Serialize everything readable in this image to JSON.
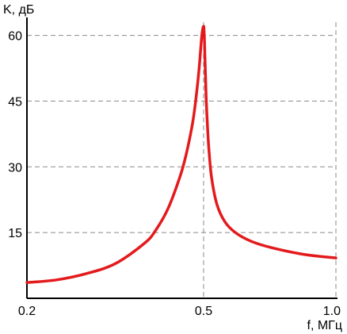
{
  "chart_data": {
    "type": "line",
    "title": "",
    "xlabel": "f, МГц",
    "ylabel": "K, дБ",
    "xlim": [
      0.2,
      1.0
    ],
    "ylim": [
      0,
      63
    ],
    "x_scale": "piecewise",
    "x_ticks": [
      {
        "value": 0.2,
        "label": "0.2"
      },
      {
        "value": 0.5,
        "label": "0.5"
      },
      {
        "value": 1.0,
        "label": "1.0"
      }
    ],
    "y_ticks": [
      {
        "value": 15,
        "label": "15"
      },
      {
        "value": 30,
        "label": "30"
      },
      {
        "value": 45,
        "label": "45"
      },
      {
        "value": 60,
        "label": "60"
      }
    ],
    "grid": true,
    "grid_style": "dashed",
    "legend": "none",
    "series": [
      {
        "color": "#e31a1c",
        "x": [
          0.2,
          0.25,
          0.3,
          0.35,
          0.4,
          0.42,
          0.44,
          0.46,
          0.47,
          0.48,
          0.485,
          0.49,
          0.493,
          0.495,
          0.497,
          0.499,
          0.5,
          0.501,
          0.503,
          0.505,
          0.507,
          0.51,
          0.515,
          0.52,
          0.53,
          0.55,
          0.58,
          0.62,
          0.68,
          0.76,
          0.88,
          1.0
        ],
        "y": [
          3.6,
          4.2,
          5.6,
          7.9,
          12.6,
          15.8,
          20.6,
          27.8,
          32.6,
          39.0,
          43.4,
          49.2,
          53.4,
          56.8,
          60.0,
          61.8,
          62.0,
          61.8,
          59.2,
          55.0,
          51.0,
          45.2,
          38.8,
          34.0,
          27.6,
          21.5,
          17.5,
          15.0,
          13.0,
          11.5,
          10.0,
          9.2
        ]
      }
    ]
  }
}
